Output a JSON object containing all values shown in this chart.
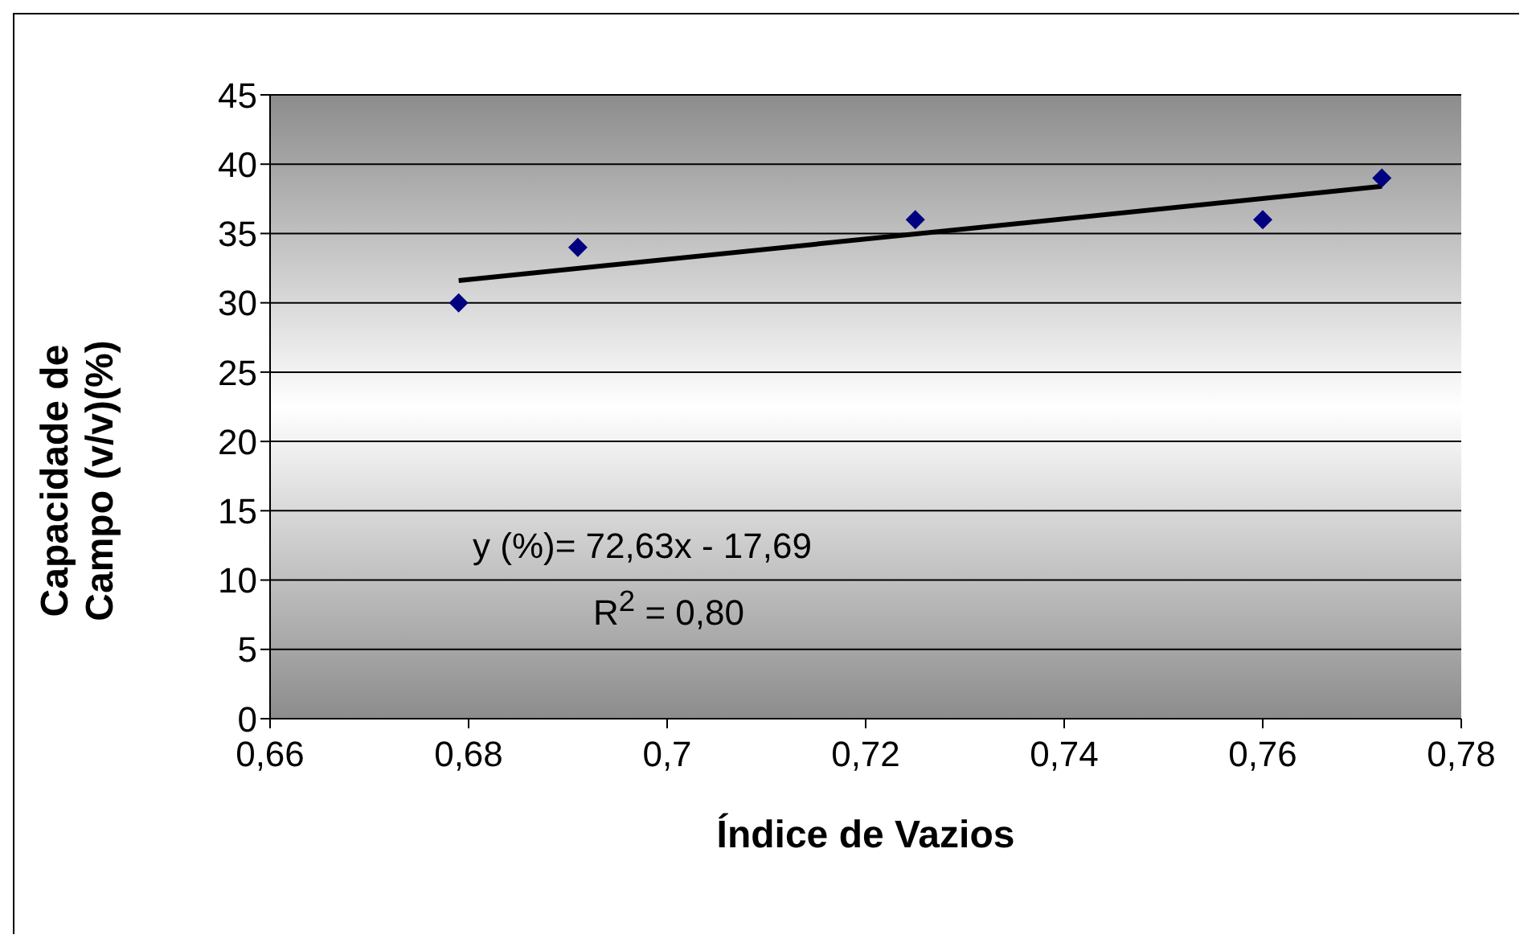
{
  "chart_data": {
    "type": "scatter",
    "xlabel": "Índice de Vazios",
    "ylabel": "Capacidade de Campo (v/v)(%)",
    "xlim": [
      0.66,
      0.78
    ],
    "xticks": [
      {
        "value": 0.66,
        "label": "0,66"
      },
      {
        "value": 0.68,
        "label": "0,68"
      },
      {
        "value": 0.7,
        "label": "0,7"
      },
      {
        "value": 0.72,
        "label": "0,72"
      },
      {
        "value": 0.74,
        "label": "0,74"
      },
      {
        "value": 0.76,
        "label": "0,76"
      },
      {
        "value": 0.78,
        "label": "0,78"
      }
    ],
    "ylim": [
      0,
      45
    ],
    "yticks": [
      0,
      5,
      10,
      15,
      20,
      25,
      30,
      35,
      40,
      45
    ],
    "grid": "y",
    "marker": "diamond",
    "series": [
      {
        "color": "#000080",
        "x": [
          0.679,
          0.691,
          0.725,
          0.76,
          0.772
        ],
        "values": [
          30,
          34,
          36,
          36,
          39
        ]
      },
      {
        "type": "line",
        "marker": "none",
        "color": "#000000",
        "x": [
          0.679,
          0.772
        ],
        "values": [
          31.6,
          38.4
        ]
      }
    ],
    "annotations": [
      "y (%)= 72,63x - 17,69",
      "R$^{2}$ = 0,80"
    ]
  }
}
